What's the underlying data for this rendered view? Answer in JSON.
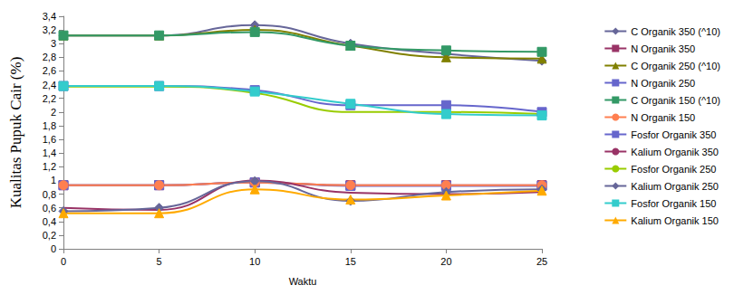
{
  "chart_data": {
    "type": "line",
    "x_label": "Waktu",
    "y_label": "Kualitas Pupuk Cair (%)",
    "x": [
      0,
      5,
      10,
      15,
      20,
      25
    ],
    "xlim": [
      0,
      25
    ],
    "xticks": [
      0,
      5,
      10,
      15,
      20,
      25
    ],
    "ylim": [
      0,
      3.4
    ],
    "yticks": [
      0,
      {
        "value": 0.2,
        "label": "0,2"
      },
      {
        "value": 0.4,
        "label": "0,4"
      },
      {
        "value": 0.6,
        "label": "0,6"
      },
      {
        "value": 0.8,
        "label": "0,8"
      },
      1,
      {
        "value": 1.2,
        "label": "1,2"
      },
      {
        "value": 1.4,
        "label": "1,4"
      },
      {
        "value": 1.6,
        "label": "1,6"
      },
      {
        "value": 1.8,
        "label": "1,8"
      },
      2,
      {
        "value": 2.2,
        "label": "2,2"
      },
      {
        "value": 2.4,
        "label": "2,4"
      },
      {
        "value": 2.6,
        "label": "2,6"
      },
      {
        "value": 2.8,
        "label": "2,8"
      },
      3,
      {
        "value": 3.2,
        "label": "3,2"
      },
      {
        "value": 3.4,
        "label": "3,4"
      }
    ],
    "grid": false,
    "legend": "right",
    "line_style": "smooth",
    "series": [
      {
        "name": "C Organik 350 (^10)",
        "color": "#666699",
        "marker": "diamond",
        "values": [
          3.12,
          3.12,
          3.27,
          3.0,
          2.85,
          2.75
        ]
      },
      {
        "name": "N Organik 350",
        "color": "#993366",
        "marker": "square",
        "values": [
          0.93,
          0.93,
          0.97,
          0.93,
          0.93,
          0.93
        ]
      },
      {
        "name": "C Organik 250 (^10)",
        "color": "#808000",
        "marker": "triangle",
        "values": [
          3.12,
          3.12,
          3.2,
          2.97,
          2.8,
          2.78
        ]
      },
      {
        "name": "N Organik 250",
        "color": "#6666cc",
        "marker": "square",
        "values": [
          0.93,
          0.93,
          0.97,
          0.92,
          0.92,
          0.92
        ]
      },
      {
        "name": "C Organik 150 (^10)",
        "color": "#339966",
        "marker": "square",
        "values": [
          3.12,
          3.12,
          3.17,
          2.97,
          2.9,
          2.88
        ]
      },
      {
        "name": "N Organik 150",
        "color": "#ff7f50",
        "marker": "circle",
        "values": [
          0.93,
          0.93,
          0.97,
          0.93,
          0.93,
          0.93
        ]
      },
      {
        "name": "Fosfor Organik 350",
        "color": "#6666cc",
        "marker": "square",
        "values": [
          2.38,
          2.38,
          2.32,
          2.1,
          2.1,
          2.0
        ]
      },
      {
        "name": "Kalium Organik 350",
        "color": "#993366",
        "marker": "none",
        "values": [
          0.6,
          0.57,
          1.0,
          0.82,
          0.8,
          0.83
        ]
      },
      {
        "name": "Fosfor Organik 250",
        "color": "#99cc00",
        "marker": "none",
        "values": [
          2.37,
          2.37,
          2.28,
          2.0,
          2.0,
          1.97
        ]
      },
      {
        "name": "Kalium Organik 250",
        "color": "#666699",
        "marker": "diamond",
        "values": [
          0.55,
          0.6,
          0.99,
          0.7,
          0.83,
          0.87
        ]
      },
      {
        "name": "Fosfor Organik 150",
        "color": "#33cccc",
        "marker": "square",
        "values": [
          2.38,
          2.38,
          2.3,
          2.12,
          1.97,
          1.95
        ]
      },
      {
        "name": "Kalium Organik 150",
        "color": "#ffaa00",
        "marker": "triangle",
        "values": [
          0.52,
          0.52,
          0.87,
          0.72,
          0.78,
          0.85
        ]
      }
    ]
  }
}
